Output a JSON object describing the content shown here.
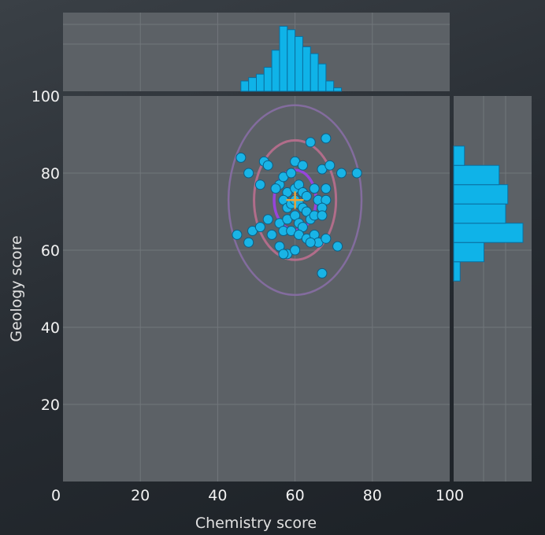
{
  "chart_data": {
    "type": "scatter",
    "title": "",
    "xlabel": "Chemistry score",
    "ylabel": "Geology score",
    "xlim": [
      0,
      100
    ],
    "ylim": [
      0,
      100
    ],
    "x_ticks": [
      "0",
      "20",
      "40",
      "60",
      "80",
      "100"
    ],
    "y_ticks": [
      "0",
      "20",
      "40",
      "60",
      "80",
      "100"
    ],
    "grid": true,
    "colors": {
      "points": "#19b4e6",
      "point_edge": "#0b5f86",
      "histogram": "#0fb3e8",
      "histogram_edge": "#0a6fa0",
      "panel": "#5c6166",
      "grid": "#71767b",
      "ellipse_inner": "#a040f0",
      "ellipse_middle": "#c07090",
      "ellipse_outer": "#8a6fa8",
      "mean_marker": "#e8a33a"
    },
    "mean": {
      "x": 60,
      "y": 73
    },
    "ellipses": [
      {
        "rx": 5.4,
        "ry": 7.8
      },
      {
        "rx": 10.6,
        "ry": 15.5
      },
      {
        "rx": 17.2,
        "ry": 24.6
      }
    ],
    "points": [
      [
        46,
        84
      ],
      [
        52,
        83
      ],
      [
        53,
        82
      ],
      [
        56,
        77
      ],
      [
        57,
        79
      ],
      [
        59,
        80
      ],
      [
        60,
        83
      ],
      [
        62,
        82
      ],
      [
        64,
        88
      ],
      [
        68,
        89
      ],
      [
        67,
        81
      ],
      [
        69,
        82
      ],
      [
        72,
        80
      ],
      [
        76,
        80
      ],
      [
        48,
        80
      ],
      [
        51,
        77
      ],
      [
        55,
        76
      ],
      [
        58,
        75
      ],
      [
        60,
        76
      ],
      [
        61,
        77
      ],
      [
        62,
        75
      ],
      [
        63,
        74
      ],
      [
        65,
        76
      ],
      [
        68,
        76
      ],
      [
        57,
        73
      ],
      [
        58,
        71
      ],
      [
        59,
        72
      ],
      [
        60,
        73
      ],
      [
        61,
        72
      ],
      [
        62,
        71
      ],
      [
        63,
        70
      ],
      [
        66,
        73
      ],
      [
        68,
        73
      ],
      [
        67,
        71
      ],
      [
        53,
        68
      ],
      [
        56,
        67
      ],
      [
        58,
        68
      ],
      [
        60,
        69
      ],
      [
        61,
        67
      ],
      [
        62,
        66
      ],
      [
        64,
        68
      ],
      [
        65,
        69
      ],
      [
        67,
        69
      ],
      [
        49,
        65
      ],
      [
        51,
        66
      ],
      [
        54,
        64
      ],
      [
        57,
        65
      ],
      [
        59,
        65
      ],
      [
        61,
        64
      ],
      [
        63,
        63
      ],
      [
        65,
        64
      ],
      [
        66,
        62
      ],
      [
        68,
        63
      ],
      [
        45,
        64
      ],
      [
        48,
        62
      ],
      [
        56,
        61
      ],
      [
        58,
        59
      ],
      [
        60,
        60
      ],
      [
        64,
        62
      ],
      [
        71,
        61
      ],
      [
        57,
        59
      ],
      [
        67,
        54
      ]
    ],
    "x_histogram": {
      "bins": [
        {
          "x0": 46,
          "x1": 48,
          "count": 3
        },
        {
          "x0": 48,
          "x1": 50,
          "count": 4
        },
        {
          "x0": 50,
          "x1": 52,
          "count": 5
        },
        {
          "x0": 52,
          "x1": 54,
          "count": 7
        },
        {
          "x0": 54,
          "x1": 56,
          "count": 12
        },
        {
          "x0": 56,
          "x1": 58,
          "count": 19
        },
        {
          "x0": 58,
          "x1": 60,
          "count": 18
        },
        {
          "x0": 60,
          "x1": 62,
          "count": 16
        },
        {
          "x0": 62,
          "x1": 64,
          "count": 13
        },
        {
          "x0": 64,
          "x1": 66,
          "count": 11
        },
        {
          "x0": 66,
          "x1": 68,
          "count": 8
        },
        {
          "x0": 68,
          "x1": 70,
          "count": 3
        },
        {
          "x0": 70,
          "x1": 72,
          "count": 1
        }
      ]
    },
    "y_histogram": {
      "bins": [
        {
          "y0": 52,
          "y1": 57,
          "count": 3
        },
        {
          "y0": 57,
          "y1": 62,
          "count": 14
        },
        {
          "y0": 62,
          "y1": 67,
          "count": 32
        },
        {
          "y0": 67,
          "y1": 72,
          "count": 24
        },
        {
          "y0": 72,
          "y1": 77,
          "count": 25
        },
        {
          "y0": 77,
          "y1": 82,
          "count": 21
        },
        {
          "y0": 82,
          "y1": 87,
          "count": 5
        }
      ],
      "max_count": 36
    },
    "x_hist_max_count": 23
  }
}
